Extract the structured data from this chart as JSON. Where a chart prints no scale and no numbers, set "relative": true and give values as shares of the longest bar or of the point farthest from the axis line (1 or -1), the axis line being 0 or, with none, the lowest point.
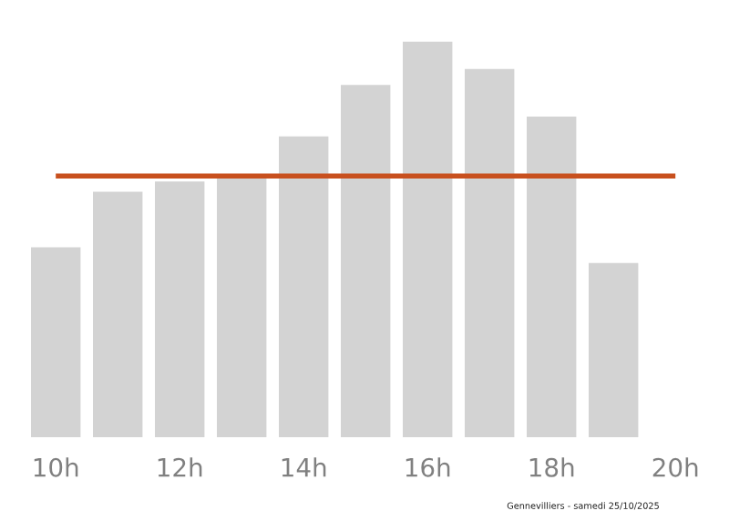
{
  "chart_data": {
    "type": "bar",
    "relative": true,
    "categories": [
      "10h",
      null,
      "12h",
      null,
      "14h",
      null,
      "16h",
      null,
      "18h",
      null,
      "20h"
    ],
    "values": [
      0.48,
      0.62,
      0.646,
      0.657,
      0.76,
      0.89,
      1,
      0.93,
      0.81,
      0.44,
      null
    ],
    "color": "#d3d3d3",
    "ref_lines": [
      {
        "axis": "y",
        "value": 0.66,
        "color": "#c8501e",
        "line_style": "solid"
      }
    ],
    "annotations": [
      "Gennevilliers - samedi 25/10/2025"
    ],
    "grid": false,
    "legend": false
  }
}
